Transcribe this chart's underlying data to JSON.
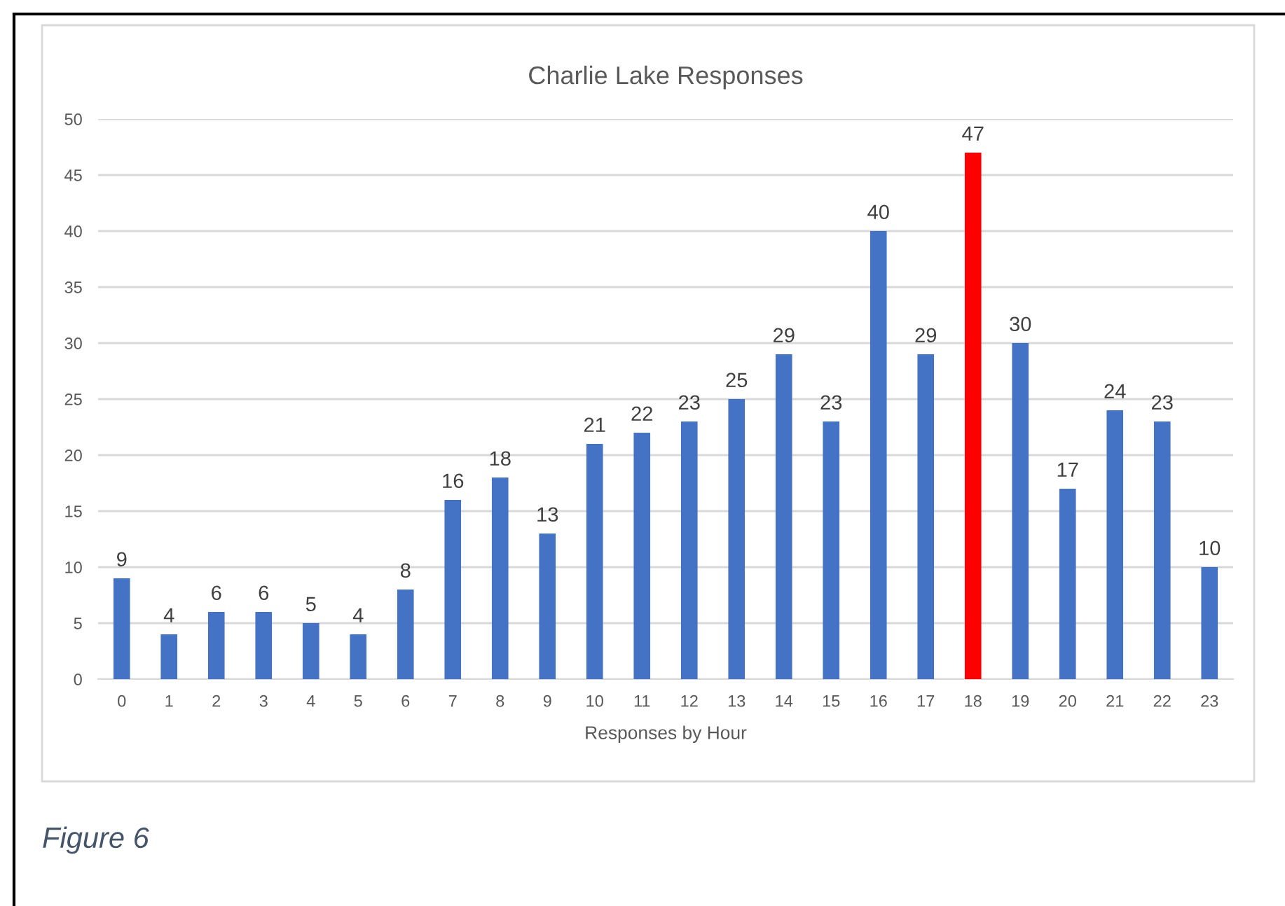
{
  "chart_data": {
    "type": "bar",
    "title": "Charlie Lake Responses",
    "xlabel": "Responses by Hour",
    "categories": [
      "0",
      "1",
      "2",
      "3",
      "4",
      "5",
      "6",
      "7",
      "8",
      "9",
      "10",
      "11",
      "12",
      "13",
      "14",
      "15",
      "16",
      "17",
      "18",
      "19",
      "20",
      "21",
      "22",
      "23"
    ],
    "values": [
      9,
      4,
      6,
      6,
      5,
      4,
      8,
      16,
      18,
      13,
      21,
      22,
      23,
      25,
      29,
      23,
      40,
      29,
      47,
      30,
      17,
      24,
      23,
      10
    ],
    "colors": [
      "#4472c4",
      "#4472c4",
      "#4472c4",
      "#4472c4",
      "#4472c4",
      "#4472c4",
      "#4472c4",
      "#4472c4",
      "#4472c4",
      "#4472c4",
      "#4472c4",
      "#4472c4",
      "#4472c4",
      "#4472c4",
      "#4472c4",
      "#4472c4",
      "#4472c4",
      "#4472c4",
      "#ff0000",
      "#4472c4",
      "#4472c4",
      "#4472c4",
      "#4472c4",
      "#4472c4"
    ],
    "ylim": [
      0,
      50
    ],
    "yticks": [
      0,
      5,
      10,
      15,
      20,
      25,
      30,
      35,
      40,
      45,
      50
    ],
    "grid": "y",
    "data_labels": true,
    "annotations": [
      "Figure 6"
    ]
  }
}
